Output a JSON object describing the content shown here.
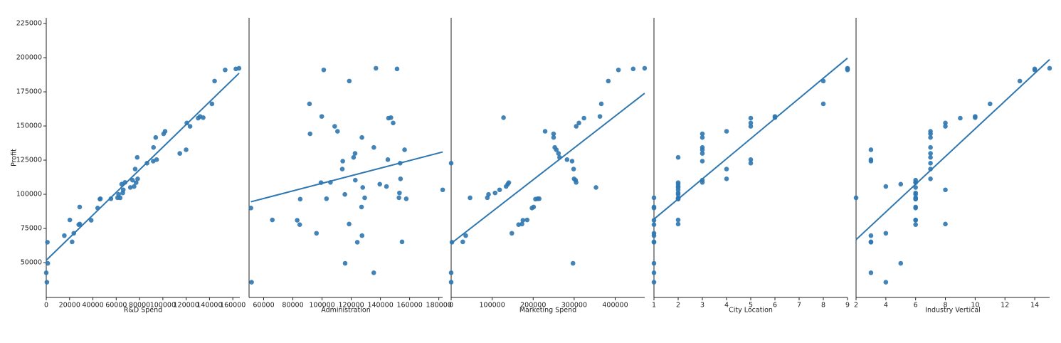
{
  "chart_data": [
    {
      "type": "scatter",
      "xlabel": "R&D Spend",
      "ylabel": "Profit",
      "color": "#2f77b0",
      "x": [
        165349,
        162598,
        153442,
        144372,
        142107,
        131877,
        134615,
        130298,
        120543,
        123335,
        101913,
        100672,
        93864,
        91992,
        119943,
        114524,
        78013,
        94657,
        91749,
        86420,
        76254,
        78389,
        73995,
        67533,
        77044,
        64665,
        75329,
        72108,
        66052,
        65605,
        61994,
        61136,
        63409,
        55494,
        46426,
        46014,
        28664,
        44070,
        20230,
        38559,
        28754,
        27893,
        23641,
        15506,
        22178,
        1000,
        1315,
        0,
        542
      ],
      "values": [
        192262,
        191792,
        191050,
        182902,
        166188,
        156991,
        156123,
        155753,
        152212,
        149760,
        146122,
        144259,
        141586,
        134307,
        132603,
        129917,
        126993,
        125370,
        124267,
        122777,
        118474,
        111313,
        110352,
        108734,
        108552,
        107404,
        105734,
        105008,
        103282,
        101005,
        99938,
        97484,
        97428,
        96779,
        96713,
        96480,
        90708,
        89949,
        81229,
        81006,
        78240,
        77799,
        71498,
        69759,
        65200,
        64926,
        49491,
        42560,
        35673
      ],
      "xlim": [
        0,
        166000
      ],
      "xticks": [
        0,
        20000,
        40000,
        60000,
        80000,
        100000,
        120000,
        140000,
        160000
      ],
      "ylim": [
        24500,
        229200
      ],
      "yticks": [
        50000,
        75000,
        100000,
        125000,
        150000,
        175000,
        200000,
        225000
      ]
    },
    {
      "type": "scatter",
      "xlabel": "Administration",
      "color": "#2f77b0",
      "x": [
        136898,
        151378,
        101146,
        118672,
        91392,
        99815,
        147199,
        145530,
        148719,
        108679,
        110594,
        91791,
        127320,
        135495,
        156547,
        122617,
        121598,
        145078,
        114176,
        153514,
        113867,
        153773,
        122783,
        105751,
        99281,
        139553,
        144136,
        127865,
        182646,
        153032,
        115641,
        152702,
        129220,
        103057,
        157694,
        85047,
        127056,
        51283,
        65948,
        82982,
        118546,
        84711,
        96190,
        127382,
        154806,
        124153,
        115816,
        135427,
        51743
      ],
      "values": [
        192262,
        191792,
        191050,
        182902,
        166188,
        156991,
        156123,
        155753,
        152212,
        149760,
        146122,
        144259,
        141586,
        134307,
        132603,
        129917,
        126993,
        125370,
        124267,
        122777,
        118474,
        111313,
        110352,
        108734,
        108552,
        107404,
        105734,
        105008,
        103282,
        101005,
        99938,
        97484,
        97428,
        96779,
        96713,
        96480,
        90708,
        89949,
        81229,
        81006,
        78240,
        77799,
        71498,
        69759,
        65200,
        64926,
        49491,
        42560,
        35673
      ],
      "xlim": [
        50000,
        182600
      ],
      "xticks": [
        60000,
        80000,
        100000,
        120000,
        140000,
        160000,
        180000
      ],
      "ylim": [
        24500,
        229200
      ]
    },
    {
      "type": "scatter",
      "xlabel": "Marketing Spend",
      "color": "#2f77b0",
      "x": [
        471784,
        443899,
        407935,
        383200,
        366168,
        362861,
        127717,
        323877,
        311613,
        304982,
        229161,
        249745,
        249839,
        252665,
        256513,
        261776,
        264346,
        282574,
        294920,
        0,
        298664,
        299737,
        303319,
        304769,
        140575,
        137963,
        134050,
        353184,
        118148,
        107138,
        91131,
        88218,
        46085,
        214635,
        210798,
        205518,
        201127,
        197029,
        185265,
        174999,
        172796,
        164471,
        148001,
        35534,
        28335,
        1904,
        297114,
        0,
        0
      ],
      "values": [
        192262,
        191792,
        191050,
        182902,
        166188,
        156991,
        156123,
        155753,
        152212,
        149760,
        146122,
        144259,
        141586,
        134307,
        132603,
        129917,
        126993,
        125370,
        124267,
        122777,
        118474,
        111313,
        110352,
        108734,
        108552,
        107404,
        105734,
        105008,
        103282,
        101005,
        99938,
        97484,
        97428,
        96779,
        96713,
        96480,
        90708,
        89949,
        81229,
        81006,
        78240,
        77799,
        71498,
        69759,
        65200,
        64926,
        49491,
        42560,
        35673
      ],
      "xlim": [
        0,
        472000
      ],
      "xticks": [
        0,
        100000,
        200000,
        300000,
        400000
      ],
      "ylim": [
        24500,
        229200
      ]
    },
    {
      "type": "scatter",
      "xlabel": "City  Location",
      "color": "#2f77b0",
      "x": [
        9,
        9,
        9,
        8,
        8,
        6,
        6,
        5,
        5,
        5,
        4,
        3,
        3,
        3,
        3,
        3,
        2,
        5,
        3,
        5,
        4,
        4,
        3,
        3,
        2,
        2,
        2,
        2,
        2,
        2,
        2,
        1,
        2,
        2,
        2,
        2,
        1,
        1,
        2,
        1,
        2,
        1,
        1,
        1,
        1,
        1,
        1,
        1,
        1
      ],
      "values": [
        192262,
        191792,
        191050,
        182902,
        166188,
        156991,
        156123,
        155753,
        152212,
        149760,
        146122,
        144259,
        141586,
        134307,
        132603,
        129917,
        126993,
        125370,
        124267,
        122777,
        118474,
        111313,
        110352,
        108734,
        108552,
        107404,
        105734,
        105008,
        103282,
        101005,
        99938,
        97484,
        97428,
        96779,
        96713,
        96480,
        90708,
        89949,
        81229,
        81006,
        78240,
        77799,
        71498,
        69759,
        65200,
        64926,
        49491,
        42560,
        35673
      ],
      "xlim": [
        1,
        9
      ],
      "xticks": [
        1,
        2,
        3,
        4,
        5,
        6,
        7,
        8,
        9
      ],
      "ylim": [
        24500,
        229200
      ]
    },
    {
      "type": "scatter",
      "xlabel": "Industry Vertical",
      "color": "#2f77b0",
      "x": [
        15,
        14,
        14,
        13,
        11,
        10,
        10,
        9,
        8,
        8,
        7,
        7,
        7,
        7,
        3,
        7,
        7,
        3,
        3,
        7,
        7,
        7,
        6,
        6,
        6,
        5,
        4,
        6,
        8,
        6,
        6,
        6,
        2,
        6,
        6,
        6,
        6,
        6,
        6,
        6,
        8,
        6,
        4,
        3,
        3,
        3,
        5,
        3,
        4
      ],
      "values": [
        192262,
        191792,
        191050,
        182902,
        166188,
        156991,
        156123,
        155753,
        152212,
        149760,
        146122,
        144259,
        141586,
        134307,
        132603,
        129917,
        126993,
        125370,
        124267,
        122777,
        118474,
        111313,
        110352,
        108734,
        108552,
        107404,
        105734,
        105008,
        103282,
        101005,
        99938,
        97484,
        97428,
        96779,
        96713,
        96480,
        90708,
        89949,
        81229,
        81006,
        78240,
        77799,
        71498,
        69759,
        65200,
        64926,
        49491,
        42560,
        35673
      ],
      "xlim": [
        2,
        15
      ],
      "xticks": [
        2,
        4,
        6,
        8,
        10,
        12,
        14
      ],
      "ylim": [
        24500,
        229200
      ]
    }
  ]
}
